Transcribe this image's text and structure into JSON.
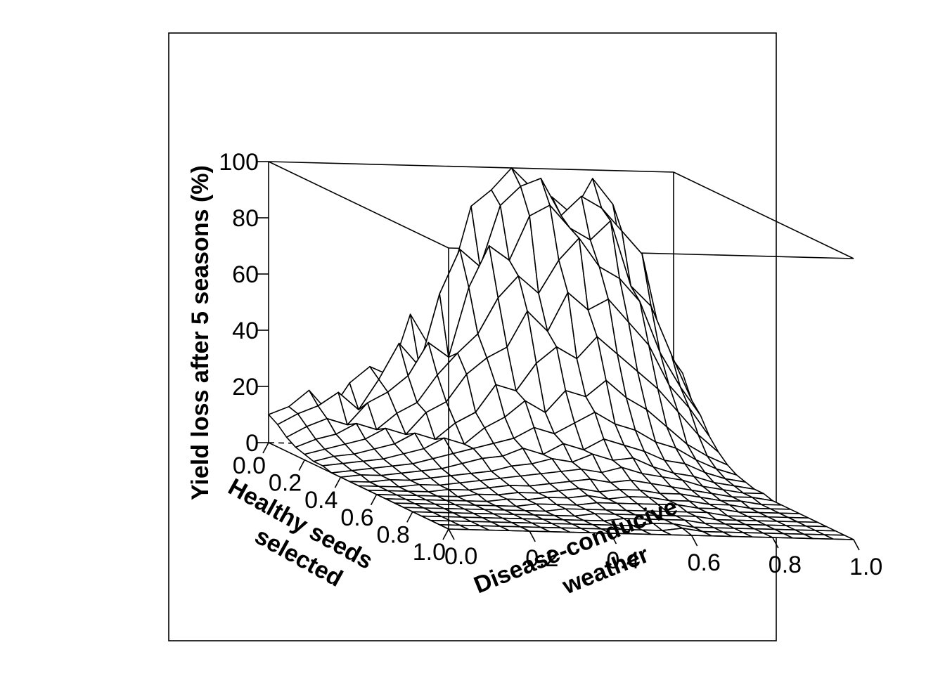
{
  "chart_data": {
    "type": "surface",
    "title": "",
    "x_axis": {
      "label": [
        "Healthy seeds",
        "selected"
      ],
      "range": [
        0.0,
        1.0
      ],
      "ticks": [
        "0.0",
        "0.2",
        "0.4",
        "0.6",
        "0.8",
        "1.0"
      ]
    },
    "y_axis": {
      "label": [
        "Disease-conducive",
        "weather"
      ],
      "range": [
        0.0,
        1.0
      ],
      "ticks": [
        "0.0",
        "0.2",
        "0.4",
        "0.6",
        "0.8",
        "1.0"
      ]
    },
    "z_axis": {
      "label": "Yield loss after 5 seasons (%)",
      "range": [
        0,
        100
      ],
      "ticks": [
        "0",
        "20",
        "40",
        "60",
        "80",
        "100"
      ]
    },
    "grid_size": 21,
    "surface_description": "Noisy ridge: yield loss highest (up to ~100%) at low healthy-seed selection with high disease-conducive weather; near 0 when healthy seeds selected is high.",
    "z_values_by_x_row": [
      [
        10,
        13,
        19,
        11,
        22,
        28,
        25,
        47,
        35,
        60,
        86,
        92,
        100,
        93,
        90,
        84,
        97,
        88,
        48,
        41,
        16
      ],
      [
        8,
        12,
        15,
        20,
        14,
        25,
        38,
        30,
        56,
        72,
        66,
        88,
        95,
        98,
        85,
        92,
        88,
        80,
        72,
        40,
        30
      ],
      [
        5,
        9,
        12,
        10,
        18,
        22,
        28,
        40,
        35,
        60,
        75,
        70,
        86,
        90,
        82,
        78,
        85,
        62,
        55,
        38,
        22
      ],
      [
        3,
        6,
        8,
        12,
        10,
        16,
        20,
        30,
        38,
        45,
        58,
        66,
        60,
        72,
        80,
        70,
        66,
        58,
        40,
        28,
        18
      ],
      [
        2,
        4,
        6,
        8,
        12,
        10,
        18,
        22,
        32,
        38,
        42,
        55,
        48,
        62,
        56,
        60,
        52,
        44,
        30,
        22,
        12
      ],
      [
        1,
        3,
        4,
        6,
        8,
        12,
        10,
        16,
        20,
        30,
        28,
        38,
        44,
        40,
        48,
        42,
        36,
        30,
        22,
        14,
        8
      ],
      [
        1,
        2,
        3,
        4,
        6,
        8,
        12,
        10,
        16,
        20,
        26,
        22,
        30,
        28,
        34,
        28,
        24,
        18,
        12,
        8,
        5
      ],
      [
        0,
        1,
        2,
        3,
        4,
        6,
        8,
        10,
        12,
        14,
        18,
        16,
        20,
        24,
        20,
        18,
        14,
        12,
        8,
        5,
        3
      ],
      [
        0,
        1,
        1,
        2,
        3,
        4,
        6,
        8,
        9,
        12,
        10,
        14,
        12,
        16,
        14,
        12,
        9,
        8,
        5,
        3,
        2
      ],
      [
        0,
        0,
        1,
        1,
        2,
        3,
        4,
        5,
        7,
        8,
        10,
        9,
        12,
        10,
        11,
        8,
        6,
        5,
        3,
        2,
        1
      ],
      [
        0,
        0,
        0,
        1,
        1,
        2,
        3,
        4,
        5,
        6,
        7,
        8,
        7,
        9,
        7,
        6,
        5,
        3,
        2,
        1,
        1
      ],
      [
        0,
        0,
        0,
        0,
        1,
        1,
        2,
        3,
        3,
        4,
        5,
        6,
        5,
        6,
        5,
        4,
        3,
        2,
        1,
        1,
        0
      ],
      [
        0,
        0,
        0,
        0,
        0,
        1,
        1,
        2,
        2,
        3,
        4,
        3,
        4,
        4,
        3,
        3,
        2,
        1,
        1,
        0,
        0
      ],
      [
        0,
        0,
        0,
        0,
        0,
        0,
        1,
        1,
        2,
        2,
        3,
        2,
        3,
        3,
        2,
        2,
        1,
        1,
        0,
        0,
        0
      ],
      [
        0,
        0,
        0,
        0,
        0,
        0,
        0,
        1,
        1,
        1,
        2,
        2,
        2,
        2,
        2,
        1,
        1,
        0,
        0,
        0,
        0
      ],
      [
        0,
        0,
        0,
        0,
        0,
        0,
        0,
        0,
        1,
        1,
        1,
        1,
        1,
        1,
        1,
        1,
        0,
        0,
        0,
        0,
        0
      ],
      [
        0,
        0,
        0,
        0,
        0,
        0,
        0,
        0,
        0,
        1,
        1,
        1,
        1,
        1,
        1,
        0,
        0,
        0,
        0,
        0,
        0
      ],
      [
        0,
        0,
        0,
        0,
        0,
        0,
        0,
        0,
        0,
        0,
        1,
        1,
        1,
        1,
        0,
        0,
        0,
        0,
        0,
        0,
        0
      ],
      [
        0,
        0,
        0,
        0,
        0,
        0,
        0,
        0,
        0,
        0,
        0,
        1,
        1,
        0,
        0,
        0,
        0,
        0,
        0,
        0,
        0
      ],
      [
        0,
        0,
        0,
        0,
        0,
        0,
        0,
        0,
        0,
        0,
        0,
        0,
        1,
        0,
        0,
        0,
        0,
        0,
        0,
        0,
        0
      ],
      [
        0,
        0,
        0,
        0,
        0,
        0,
        0,
        0,
        0,
        0,
        0,
        0,
        0,
        0,
        0,
        0,
        0,
        0,
        0,
        0,
        0
      ]
    ]
  }
}
